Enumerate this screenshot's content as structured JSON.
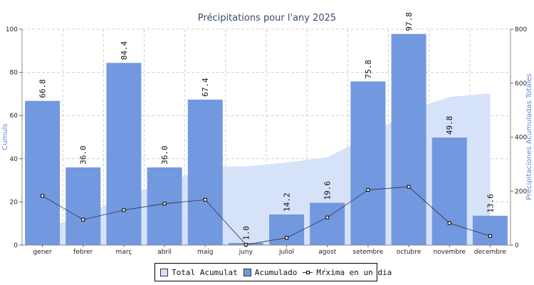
{
  "chart_data": {
    "type": "bar",
    "title": "Précipitations pour l'any 2025",
    "categories": [
      "gener",
      "febrer",
      "març",
      "abril",
      "maig",
      "juny",
      "juliol",
      "agost",
      "setembre",
      "octubre",
      "novembre",
      "decembre"
    ],
    "ylabel_left": "Cumuls",
    "ylabel_right": "Precipitaciones Acumuladas Totales",
    "ylim_left": [
      0,
      100
    ],
    "ylim_right": [
      0,
      800
    ],
    "yticks_left": [
      0,
      20,
      40,
      60,
      80,
      100
    ],
    "yticks_right": [
      0,
      200,
      400,
      600,
      800
    ],
    "grid": true,
    "legend_position": "bottom",
    "series": [
      {
        "name": "Total Acumulat",
        "type": "area",
        "axis": "right",
        "color": "#d4e0f8",
        "values": [
          66.8,
          102.8,
          187.2,
          223.2,
          290.6,
          291.6,
          305.8,
          325.4,
          401.2,
          499.0,
          548.8,
          562.4
        ]
      },
      {
        "name": "Acumulado",
        "type": "bar",
        "axis": "left",
        "color": "#7298df",
        "values": [
          66.8,
          36.0,
          84.4,
          36.0,
          67.4,
          1.0,
          14.2,
          19.6,
          75.8,
          97.8,
          49.8,
          13.6
        ],
        "labels": [
          "66.8",
          "36.0",
          "84.4",
          "36.0",
          "67.4",
          "1.0",
          "14.2",
          "19.6",
          "75.8",
          "97.8",
          "49.8",
          "13.6"
        ]
      },
      {
        "name": "Mŕxima en un dia",
        "type": "line",
        "axis": "left",
        "color": "#333333",
        "values": [
          22.8,
          11.8,
          16.2,
          19.2,
          21.0,
          0.2,
          3.4,
          12.8,
          25.6,
          27.0,
          10.2,
          4.2
        ]
      }
    ]
  },
  "legend": {
    "total_label": "Total Acumulat",
    "bar_label": "Acumulado",
    "line_label": "Mŕxima en un dia"
  }
}
